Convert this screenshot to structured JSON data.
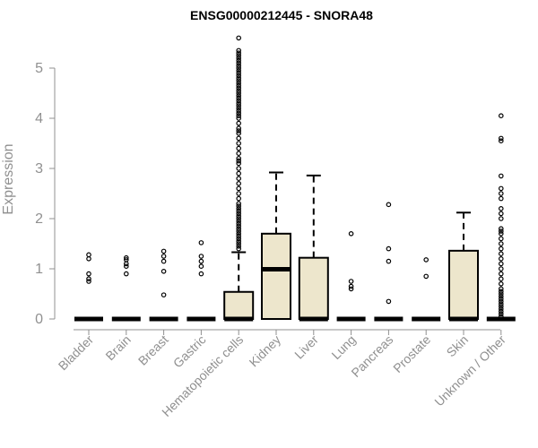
{
  "chart_data": {
    "type": "boxplot",
    "title": "ENSG00000212445 - SNORA48",
    "xlabel": "",
    "ylabel": "Expression",
    "ylim": [
      0,
      5.5
    ],
    "yticks": [
      0,
      1,
      2,
      3,
      4,
      5
    ],
    "box_color": "#ede6cc",
    "categories": [
      "Bladder",
      "Brain",
      "Breast",
      "Gastric",
      "Hematopoietic cells",
      "Kidney",
      "Liver",
      "Lung",
      "Pancreas",
      "Prostate",
      "Skin",
      "Unknown / Other"
    ],
    "boxes": [
      {
        "q1": 0,
        "median": 0,
        "q3": 0,
        "whisker_low": 0,
        "whisker_high": 0,
        "outliers": [
          0.75,
          0.8,
          0.9,
          1.2,
          1.28
        ]
      },
      {
        "q1": 0,
        "median": 0,
        "q3": 0,
        "whisker_low": 0,
        "whisker_high": 0,
        "outliers": [
          0.9,
          1.05,
          1.1,
          1.18,
          1.22
        ]
      },
      {
        "q1": 0,
        "median": 0,
        "q3": 0,
        "whisker_low": 0,
        "whisker_high": 0,
        "outliers": [
          0.48,
          0.95,
          1.15,
          1.25,
          1.35
        ]
      },
      {
        "q1": 0,
        "median": 0,
        "q3": 0,
        "whisker_low": 0,
        "whisker_high": 0,
        "outliers": [
          0.9,
          1.05,
          1.15,
          1.25,
          1.52
        ]
      },
      {
        "q1": 0,
        "median": 0,
        "q3": 0.54,
        "whisker_low": 0,
        "whisker_high": 1.33,
        "outliers": [
          1.4,
          1.45,
          1.5,
          1.55,
          1.6,
          1.65,
          1.7,
          1.75,
          1.8,
          1.85,
          1.9,
          1.95,
          2.0,
          2.05,
          2.1,
          2.15,
          2.2,
          2.25,
          2.3,
          2.4,
          2.5,
          2.6,
          2.7,
          2.8,
          2.9,
          3.0,
          3.1,
          3.15,
          3.2,
          3.3,
          3.4,
          3.5,
          3.6,
          3.7,
          3.75,
          3.8,
          3.9,
          4.0,
          4.05,
          4.1,
          4.15,
          4.2,
          4.25,
          4.3,
          4.35,
          4.4,
          4.45,
          4.5,
          4.55,
          4.6,
          4.65,
          4.7,
          4.75,
          4.8,
          4.85,
          4.9,
          4.95,
          5.0,
          5.05,
          5.1,
          5.15,
          5.2,
          5.25,
          5.3,
          5.35,
          5.6
        ]
      },
      {
        "q1": 0,
        "median": 0.99,
        "q3": 1.7,
        "whisker_low": 0,
        "whisker_high": 2.92,
        "outliers": []
      },
      {
        "q1": 0,
        "median": 0,
        "q3": 1.22,
        "whisker_low": 0,
        "whisker_high": 2.86,
        "outliers": []
      },
      {
        "q1": 0,
        "median": 0,
        "q3": 0,
        "whisker_low": 0,
        "whisker_high": 0,
        "outliers": [
          0.6,
          0.65,
          0.75,
          1.7
        ]
      },
      {
        "q1": 0,
        "median": 0,
        "q3": 0,
        "whisker_low": 0,
        "whisker_high": 0,
        "outliers": [
          0.35,
          1.15,
          1.4,
          2.28
        ]
      },
      {
        "q1": 0,
        "median": 0,
        "q3": 0,
        "whisker_low": 0,
        "whisker_high": 0,
        "outliers": [
          0.85,
          1.18
        ]
      },
      {
        "q1": 0,
        "median": 0,
        "q3": 1.36,
        "whisker_low": 0,
        "whisker_high": 2.12,
        "outliers": []
      },
      {
        "q1": 0,
        "median": 0,
        "q3": 0,
        "whisker_low": 0,
        "whisker_high": 0,
        "outliers": [
          0.05,
          0.1,
          0.15,
          0.2,
          0.25,
          0.3,
          0.35,
          0.4,
          0.45,
          0.5,
          0.55,
          0.6,
          0.7,
          0.8,
          0.9,
          1.0,
          1.1,
          1.2,
          1.3,
          1.4,
          1.5,
          1.6,
          1.7,
          1.75,
          1.8,
          2.0,
          2.1,
          2.2,
          2.4,
          2.5,
          2.6,
          2.85,
          3.55,
          3.6,
          4.05
        ]
      }
    ]
  }
}
